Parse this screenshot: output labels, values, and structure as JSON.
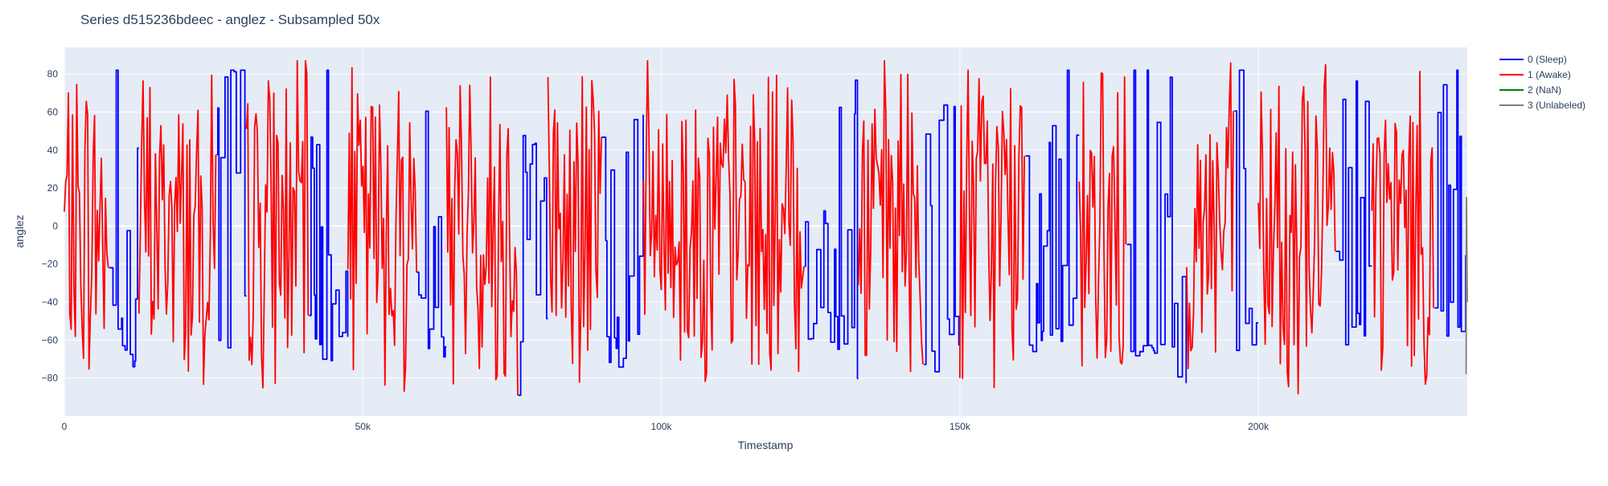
{
  "chart_data": {
    "type": "line",
    "title": "Series d515236bdeec - anglez - Subsampled 50x",
    "xlabel": "Timestamp",
    "ylabel": "anglez",
    "xlim": [
      0,
      235000
    ],
    "ylim": [
      -100,
      94
    ],
    "x_ticks": [
      0,
      50000,
      100000,
      150000,
      200000
    ],
    "x_tick_labels": [
      "0",
      "50k",
      "100k",
      "150k",
      "200k"
    ],
    "y_ticks": [
      -80,
      -60,
      -40,
      -20,
      0,
      20,
      40,
      60,
      80
    ],
    "y_tick_labels": [
      "−80",
      "−60",
      "−40",
      "−20",
      "0",
      "20",
      "40",
      "60",
      "80"
    ],
    "grid": true,
    "legend_position": "top-right",
    "series": [
      {
        "name": "0 (Sleep)",
        "color": "#0000ff"
      },
      {
        "name": "1 (Awake)",
        "color": "#ff0000"
      },
      {
        "name": "2 (NaN)",
        "color": "#008000"
      },
      {
        "name": "3 (Unlabeled)",
        "color": "#808080"
      }
    ],
    "segments": [
      {
        "label": 1,
        "start": 0,
        "end": 7500
      },
      {
        "label": 0,
        "start": 7500,
        "end": 12500
      },
      {
        "label": 1,
        "start": 12500,
        "end": 25500
      },
      {
        "label": 0,
        "start": 25500,
        "end": 30500
      },
      {
        "label": 1,
        "start": 30500,
        "end": 41000
      },
      {
        "label": 0,
        "start": 41000,
        "end": 47500
      },
      {
        "label": 1,
        "start": 47500,
        "end": 59000
      },
      {
        "label": 0,
        "start": 59000,
        "end": 64000
      },
      {
        "label": 1,
        "start": 64000,
        "end": 76000
      },
      {
        "label": 0,
        "start": 76000,
        "end": 81000
      },
      {
        "label": 1,
        "start": 81000,
        "end": 90000
      },
      {
        "label": 0,
        "start": 90000,
        "end": 97000
      },
      {
        "label": 1,
        "start": 97000,
        "end": 124000
      },
      {
        "label": 0,
        "start": 124000,
        "end": 133000
      },
      {
        "label": 1,
        "start": 133000,
        "end": 144000
      },
      {
        "label": 0,
        "start": 144000,
        "end": 150000
      },
      {
        "label": 1,
        "start": 150000,
        "end": 161000
      },
      {
        "label": 0,
        "start": 161000,
        "end": 170000
      },
      {
        "label": 1,
        "start": 170000,
        "end": 178000
      },
      {
        "label": 0,
        "start": 178000,
        "end": 188000
      },
      {
        "label": 1,
        "start": 188000,
        "end": 196000
      },
      {
        "label": 0,
        "start": 196000,
        "end": 200000
      },
      {
        "label": 1,
        "start": 200000,
        "end": 213000
      },
      {
        "label": 0,
        "start": 213000,
        "end": 219000
      },
      {
        "label": 1,
        "start": 219000,
        "end": 229500
      },
      {
        "label": 0,
        "start": 229500,
        "end": 234800
      },
      {
        "label": 3,
        "start": 234800,
        "end": 235000
      }
    ]
  }
}
